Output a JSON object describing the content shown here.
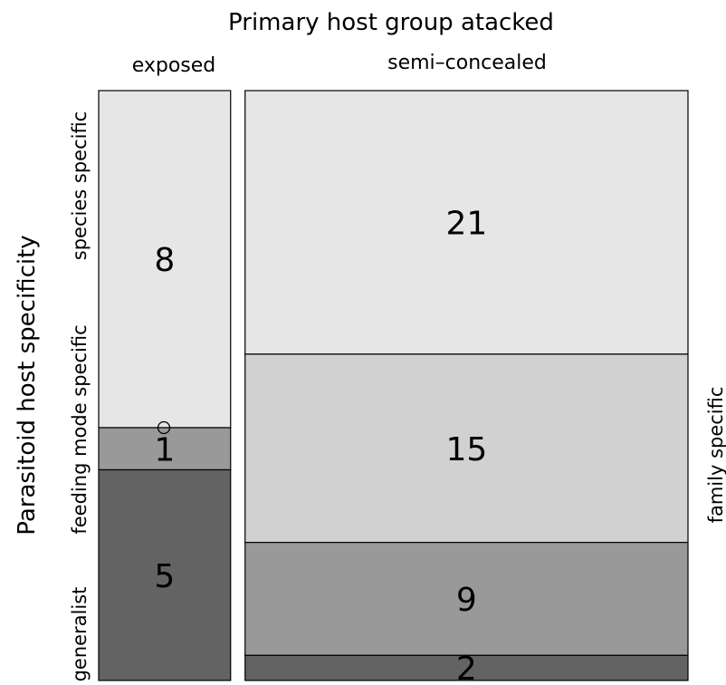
{
  "chart_data": {
    "type": "mosaic",
    "title": "Primary host group atacked",
    "ylabel": "Parasitoid host specificity",
    "columns": [
      "exposed",
      "semi–concealed"
    ],
    "rows": [
      "species specific",
      "feeding mode specific",
      "generalist"
    ],
    "extra_row_label": "family specific",
    "cells": [
      {
        "column": "exposed",
        "category": "species specific",
        "count": 8,
        "color": "#e6e6e6"
      },
      {
        "column": "exposed",
        "category": "feeding mode specific",
        "count": 1,
        "color": "#999999"
      },
      {
        "column": "exposed",
        "category": "generalist",
        "count": 5,
        "color": "#636363"
      },
      {
        "column": "semi–concealed",
        "category": "species specific",
        "count": 21,
        "color": "#e6e6e6"
      },
      {
        "column": "semi–concealed",
        "category": "family specific",
        "count": 15,
        "color": "#d1d1d1"
      },
      {
        "column": "semi–concealed",
        "category": "feeding mode specific",
        "count": 9,
        "color": "#999999"
      },
      {
        "column": "semi–concealed",
        "category": "generalist",
        "count": 2,
        "color": "#636363"
      }
    ]
  }
}
